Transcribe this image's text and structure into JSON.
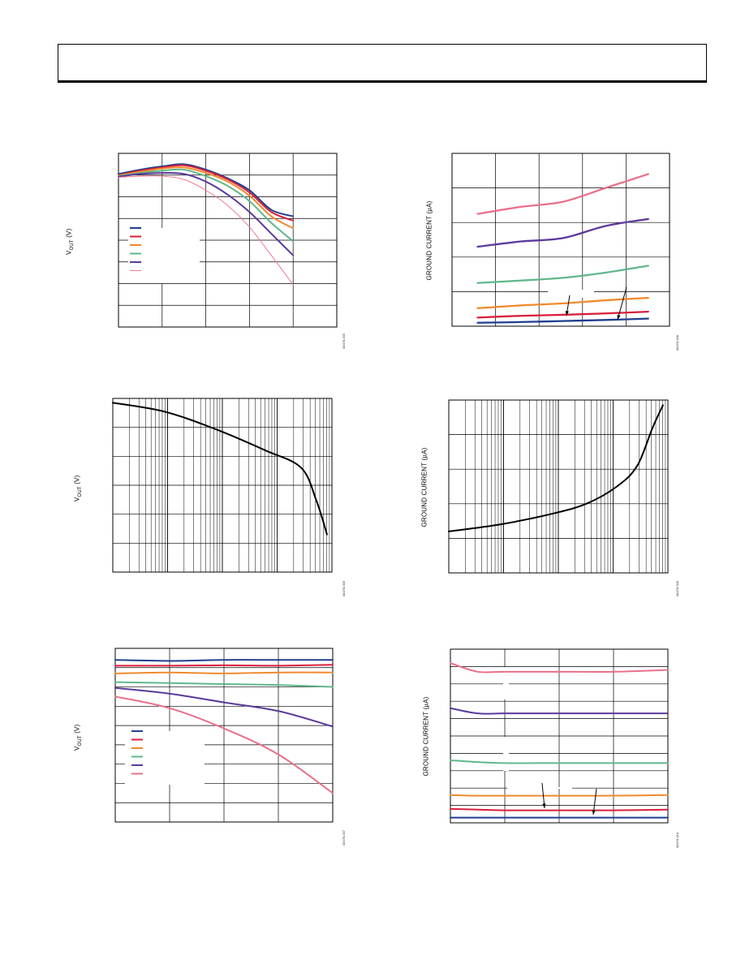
{
  "chart_data": [
    {
      "id": "chart-1",
      "type": "line",
      "ylabel": "VOUT (V)",
      "fig_id": "08478-005",
      "grid": true,
      "legend": "left",
      "x": [
        0,
        1,
        2,
        3,
        4,
        5,
        6,
        7,
        8
      ],
      "xlim": [
        0,
        10
      ],
      "ylim": [
        0,
        8
      ],
      "series": [
        {
          "color": "#1f3f8f",
          "width": 2.0,
          "values": [
            7.05,
            7.25,
            7.4,
            7.5,
            7.25,
            6.85,
            6.3,
            5.4,
            5.1
          ]
        },
        {
          "color": "#d8203a",
          "width": 2.0,
          "values": [
            7.0,
            7.2,
            7.35,
            7.45,
            7.2,
            6.8,
            6.2,
            5.3,
            4.9
          ]
        },
        {
          "color": "#f08a2e",
          "width": 2.0,
          "values": [
            6.98,
            7.15,
            7.3,
            7.35,
            7.1,
            6.7,
            6.05,
            5.1,
            4.55
          ]
        },
        {
          "color": "#5fb88a",
          "width": 2.0,
          "values": [
            6.95,
            7.1,
            7.2,
            7.25,
            6.95,
            6.5,
            5.8,
            4.8,
            3.95
          ]
        },
        {
          "color": "#5b3a9a",
          "width": 2.0,
          "values": [
            6.93,
            7.05,
            7.1,
            7.05,
            6.7,
            6.1,
            5.3,
            4.3,
            3.3
          ]
        },
        {
          "color": "#f07890",
          "width": 1.0,
          "values": [
            6.9,
            6.95,
            6.95,
            6.8,
            6.3,
            5.6,
            4.6,
            3.3,
            1.95
          ]
        }
      ]
    },
    {
      "id": "chart-2",
      "type": "line",
      "ylabel": "GROUND CURRENT (µA)",
      "fig_id": "08478-008",
      "grid": true,
      "x": [
        0,
        1,
        2,
        3,
        4
      ],
      "xlim": [
        -0.6,
        4.5
      ],
      "ylim": [
        0,
        5
      ],
      "series": [
        {
          "color": "#e8708a",
          "width": 2.3,
          "values": [
            3.25,
            3.45,
            3.6,
            4.0,
            4.4
          ]
        },
        {
          "color": "#5b3a9a",
          "width": 2.3,
          "values": [
            2.3,
            2.45,
            2.55,
            2.9,
            3.1
          ]
        },
        {
          "color": "#5fb88a",
          "width": 2.3,
          "values": [
            1.25,
            1.32,
            1.4,
            1.55,
            1.75
          ]
        },
        {
          "color": "#f08a2e",
          "width": 2.3,
          "values": [
            0.52,
            0.6,
            0.66,
            0.75,
            0.82
          ]
        },
        {
          "color": "#d8203a",
          "width": 2.3,
          "values": [
            0.25,
            0.3,
            0.33,
            0.37,
            0.42
          ]
        },
        {
          "color": "#1f3f8f",
          "width": 2.3,
          "values": [
            0.1,
            0.12,
            0.15,
            0.18,
            0.22
          ]
        }
      ]
    },
    {
      "id": "chart-3",
      "type": "line",
      "ylabel": "VOUT (V)",
      "fig_id": "08478-006",
      "grid": true,
      "xscale": "log",
      "x": [
        0.0001,
        0.001,
        0.01,
        0.1,
        0.5,
        1,
        1.6
      ],
      "xlim": [
        0.0001,
        2
      ],
      "ylim": [
        0,
        6
      ],
      "series": [
        {
          "color": "#000000",
          "width": 2.0,
          "values": [
            5.85,
            5.55,
            4.95,
            4.2,
            3.6,
            2.45,
            1.3
          ]
        }
      ]
    },
    {
      "id": "chart-4",
      "type": "line",
      "ylabel": "GROUND CURRENT (µA)",
      "fig_id": "08478-009",
      "grid": true,
      "xscale": "log",
      "x": [
        0.0001,
        0.001,
        0.01,
        0.05,
        0.2,
        0.5,
        1,
        1.6
      ],
      "xlim": [
        0.0001,
        2
      ],
      "ylim": [
        0,
        5
      ],
      "series": [
        {
          "color": "#000000",
          "width": 2.0,
          "values": [
            1.2,
            1.4,
            1.7,
            2.0,
            2.5,
            3.1,
            4.2,
            4.85
          ]
        }
      ]
    },
    {
      "id": "chart-5",
      "type": "line",
      "ylabel": "VOUT (V)",
      "fig_id": "08478-007",
      "grid": true,
      "legend": "left",
      "x": [
        0,
        1,
        2,
        3,
        4
      ],
      "xlim": [
        0,
        4
      ],
      "ylim": [
        0,
        9
      ],
      "series": [
        {
          "color": "#1f3f8f",
          "width": 2.0,
          "values": [
            8.4,
            8.35,
            8.4,
            8.4,
            8.4
          ]
        },
        {
          "color": "#d8203a",
          "width": 2.0,
          "values": [
            8.1,
            8.1,
            8.12,
            8.1,
            8.15
          ]
        },
        {
          "color": "#f08a2e",
          "width": 2.0,
          "values": [
            7.7,
            7.75,
            7.7,
            7.75,
            7.75
          ]
        },
        {
          "color": "#5fb88a",
          "width": 2.0,
          "values": [
            7.25,
            7.2,
            7.15,
            7.1,
            7.0
          ]
        },
        {
          "color": "#5b3a9a",
          "width": 2.0,
          "values": [
            6.95,
            6.65,
            6.2,
            5.75,
            4.95
          ]
        },
        {
          "color": "#e8708a",
          "width": 2.0,
          "values": [
            6.5,
            5.9,
            4.85,
            3.5,
            1.5
          ]
        }
      ]
    },
    {
      "id": "chart-6",
      "type": "line",
      "ylabel": "GROUND CURRENT (µA)",
      "fig_id": "08478-010",
      "grid": true,
      "x": [
        0,
        0.5,
        1,
        2,
        3,
        4
      ],
      "xlim": [
        0,
        4
      ],
      "ylim": [
        0,
        5
      ],
      "series": [
        {
          "color": "#e8708a",
          "width": 2.0,
          "values": [
            4.6,
            4.35,
            4.35,
            4.35,
            4.35,
            4.4
          ]
        },
        {
          "color": "#5b3a9a",
          "width": 2.0,
          "values": [
            3.3,
            3.15,
            3.15,
            3.15,
            3.15,
            3.15
          ]
        },
        {
          "color": "#5fb88a",
          "width": 2.0,
          "values": [
            1.8,
            1.75,
            1.72,
            1.72,
            1.72,
            1.72
          ]
        },
        {
          "color": "#f08a2e",
          "width": 2.0,
          "values": [
            0.8,
            0.78,
            0.78,
            0.78,
            0.78,
            0.8
          ]
        },
        {
          "color": "#d8203a",
          "width": 2.0,
          "values": [
            0.4,
            0.38,
            0.36,
            0.36,
            0.36,
            0.38
          ]
        },
        {
          "color": "#1f3f8f",
          "width": 2.0,
          "values": [
            0.15,
            0.15,
            0.15,
            0.15,
            0.15,
            0.15
          ]
        }
      ]
    }
  ]
}
